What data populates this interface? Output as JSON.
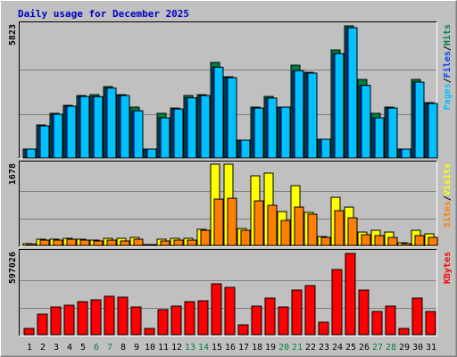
{
  "chart_data": [
    {
      "type": "bar",
      "title": "Daily usage for December 2025",
      "legend_separator": "/",
      "ylim": [
        0,
        5823
      ],
      "yticks": [
        5823
      ],
      "series": [
        {
          "name": "Hits",
          "color": "#008040",
          "values": [
            393,
            1455,
            1967,
            2320,
            2752,
            2790,
            3145,
            2790,
            2241,
            393,
            1967,
            2200,
            2752,
            2790,
            4210,
            3580,
            786,
            2241,
            2713,
            2241,
            4090,
            3775,
            826,
            4760,
            5823,
            3460,
            1967,
            2241,
            393,
            3460,
            2438
          ]
        },
        {
          "name": "Files",
          "color": "#0040ff",
          "values": [
            393,
            1415,
            1930,
            2280,
            2710,
            2700,
            3080,
            2750,
            2080,
            393,
            1770,
            2160,
            2650,
            2750,
            4000,
            3540,
            786,
            2200,
            2640,
            2241,
            3850,
            3740,
            826,
            4600,
            5740,
            3200,
            1770,
            2200,
            393,
            3340,
            2400
          ]
        },
        {
          "name": "Pages",
          "color": "#00c0ff",
          "values": [
            393,
            1415,
            1930,
            2280,
            2710,
            2700,
            3080,
            2750,
            2080,
            393,
            1770,
            2160,
            2650,
            2750,
            4000,
            3540,
            786,
            2200,
            2640,
            2241,
            3850,
            3740,
            826,
            4600,
            5740,
            3200,
            1770,
            2200,
            393,
            3340,
            2400
          ]
        }
      ]
    },
    {
      "type": "bar",
      "legend_separator": "/",
      "ylim": [
        0,
        1678
      ],
      "yticks": [
        1678
      ],
      "series": [
        {
          "name": "Visits",
          "color": "#ffff00",
          "values": [
            37,
            129,
            129,
            147,
            129,
            110,
            147,
            147,
            166,
            18,
            129,
            147,
            147,
            332,
            1678,
            1678,
            350,
            1438,
            1494,
            700,
            1235,
            682,
            184,
            995,
            792,
            276,
            313,
            276,
            55,
            313,
            240
          ]
        },
        {
          "name": "Sites",
          "color": "#ff8000",
          "values": [
            30,
            110,
            110,
            129,
            110,
            92,
            110,
            92,
            129,
            18,
            92,
            110,
            110,
            313,
            957,
            975,
            313,
            921,
            829,
            516,
            792,
            645,
            166,
            718,
            571,
            221,
            203,
            166,
            37,
            203,
            166
          ]
        }
      ]
    },
    {
      "type": "bar",
      "ylim": [
        0,
        597026
      ],
      "yticks": [
        597026
      ],
      "categories": [
        "1",
        "2",
        "3",
        "4",
        "5",
        "6",
        "7",
        "8",
        "9",
        "10",
        "11",
        "12",
        "13",
        "14",
        "15",
        "16",
        "17",
        "18",
        "19",
        "20",
        "21",
        "22",
        "23",
        "24",
        "25",
        "26",
        "27",
        "28",
        "29",
        "30",
        "31"
      ],
      "category_colors": [
        "#000000",
        "#000000",
        "#000000",
        "#000000",
        "#000000",
        "#008040",
        "#008040",
        "#000000",
        "#000000",
        "#000000",
        "#000000",
        "#000000",
        "#008040",
        "#008040",
        "#000000",
        "#000000",
        "#000000",
        "#000000",
        "#000000",
        "#008040",
        "#008040",
        "#000000",
        "#000000",
        "#000000",
        "#000000",
        "#000000",
        "#008040",
        "#008040",
        "#000000",
        "#000000",
        "#000000"
      ],
      "series": [
        {
          "name": "KBytes",
          "color": "#ff0000",
          "values": [
            45900,
            150900,
            203400,
            216500,
            242800,
            255900,
            282100,
            275600,
            203400,
            45900,
            183700,
            210000,
            242800,
            249300,
            374000,
            347700,
            72200,
            210000,
            269000,
            203400,
            328000,
            360900,
            91900,
            479000,
            597026,
            328000,
            170600,
            210000,
            45900,
            269000,
            170600
          ]
        }
      ]
    }
  ]
}
